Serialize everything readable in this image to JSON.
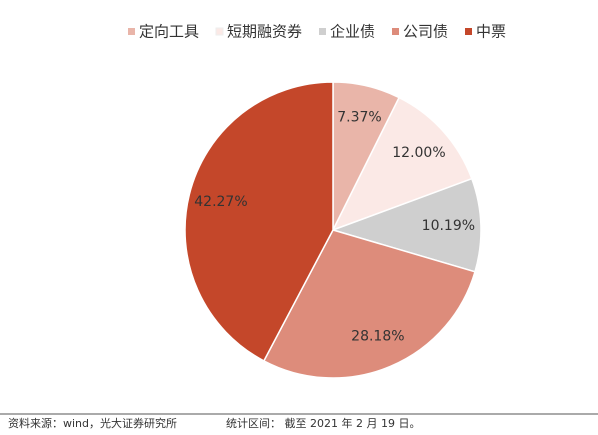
{
  "chart_data": {
    "type": "pie",
    "categories": [
      "定向工具",
      "短期融资券",
      "企业债",
      "公司债",
      "中票"
    ],
    "values": [
      7.37,
      12.0,
      10.19,
      28.18,
      42.27
    ],
    "value_labels": [
      "7.37%",
      "12.00%",
      "10.19%",
      "28.18%",
      "42.27%"
    ],
    "colors": [
      "#e9b5a9",
      "#fbe9e6",
      "#cfcfcf",
      "#dd8c7b",
      "#c4472a"
    ],
    "legend": "top",
    "notes": [
      "资料来源：wind，光大证券研究所",
      "统计区间：  截至 2021 年 2 月 19 日。"
    ]
  }
}
